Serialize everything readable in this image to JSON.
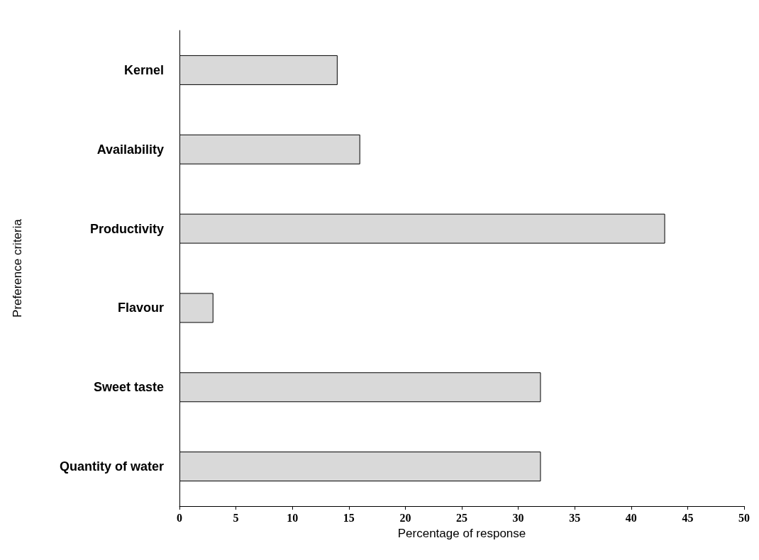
{
  "chart_data": {
    "type": "bar",
    "orientation": "horizontal",
    "xlabel": "Percentage of response",
    "ylabel": "Preference criteria",
    "categories": [
      "Kernel",
      "Availability",
      "Productivity",
      "Flavour",
      "Sweet taste",
      "Quantity of water"
    ],
    "values": [
      14,
      16,
      43,
      3,
      32,
      32
    ],
    "color": "#d9d9d9",
    "xlim": [
      0,
      50
    ],
    "xticks": [
      0,
      5,
      10,
      15,
      20,
      25,
      30,
      35,
      40,
      45,
      50
    ],
    "grid": false
  }
}
